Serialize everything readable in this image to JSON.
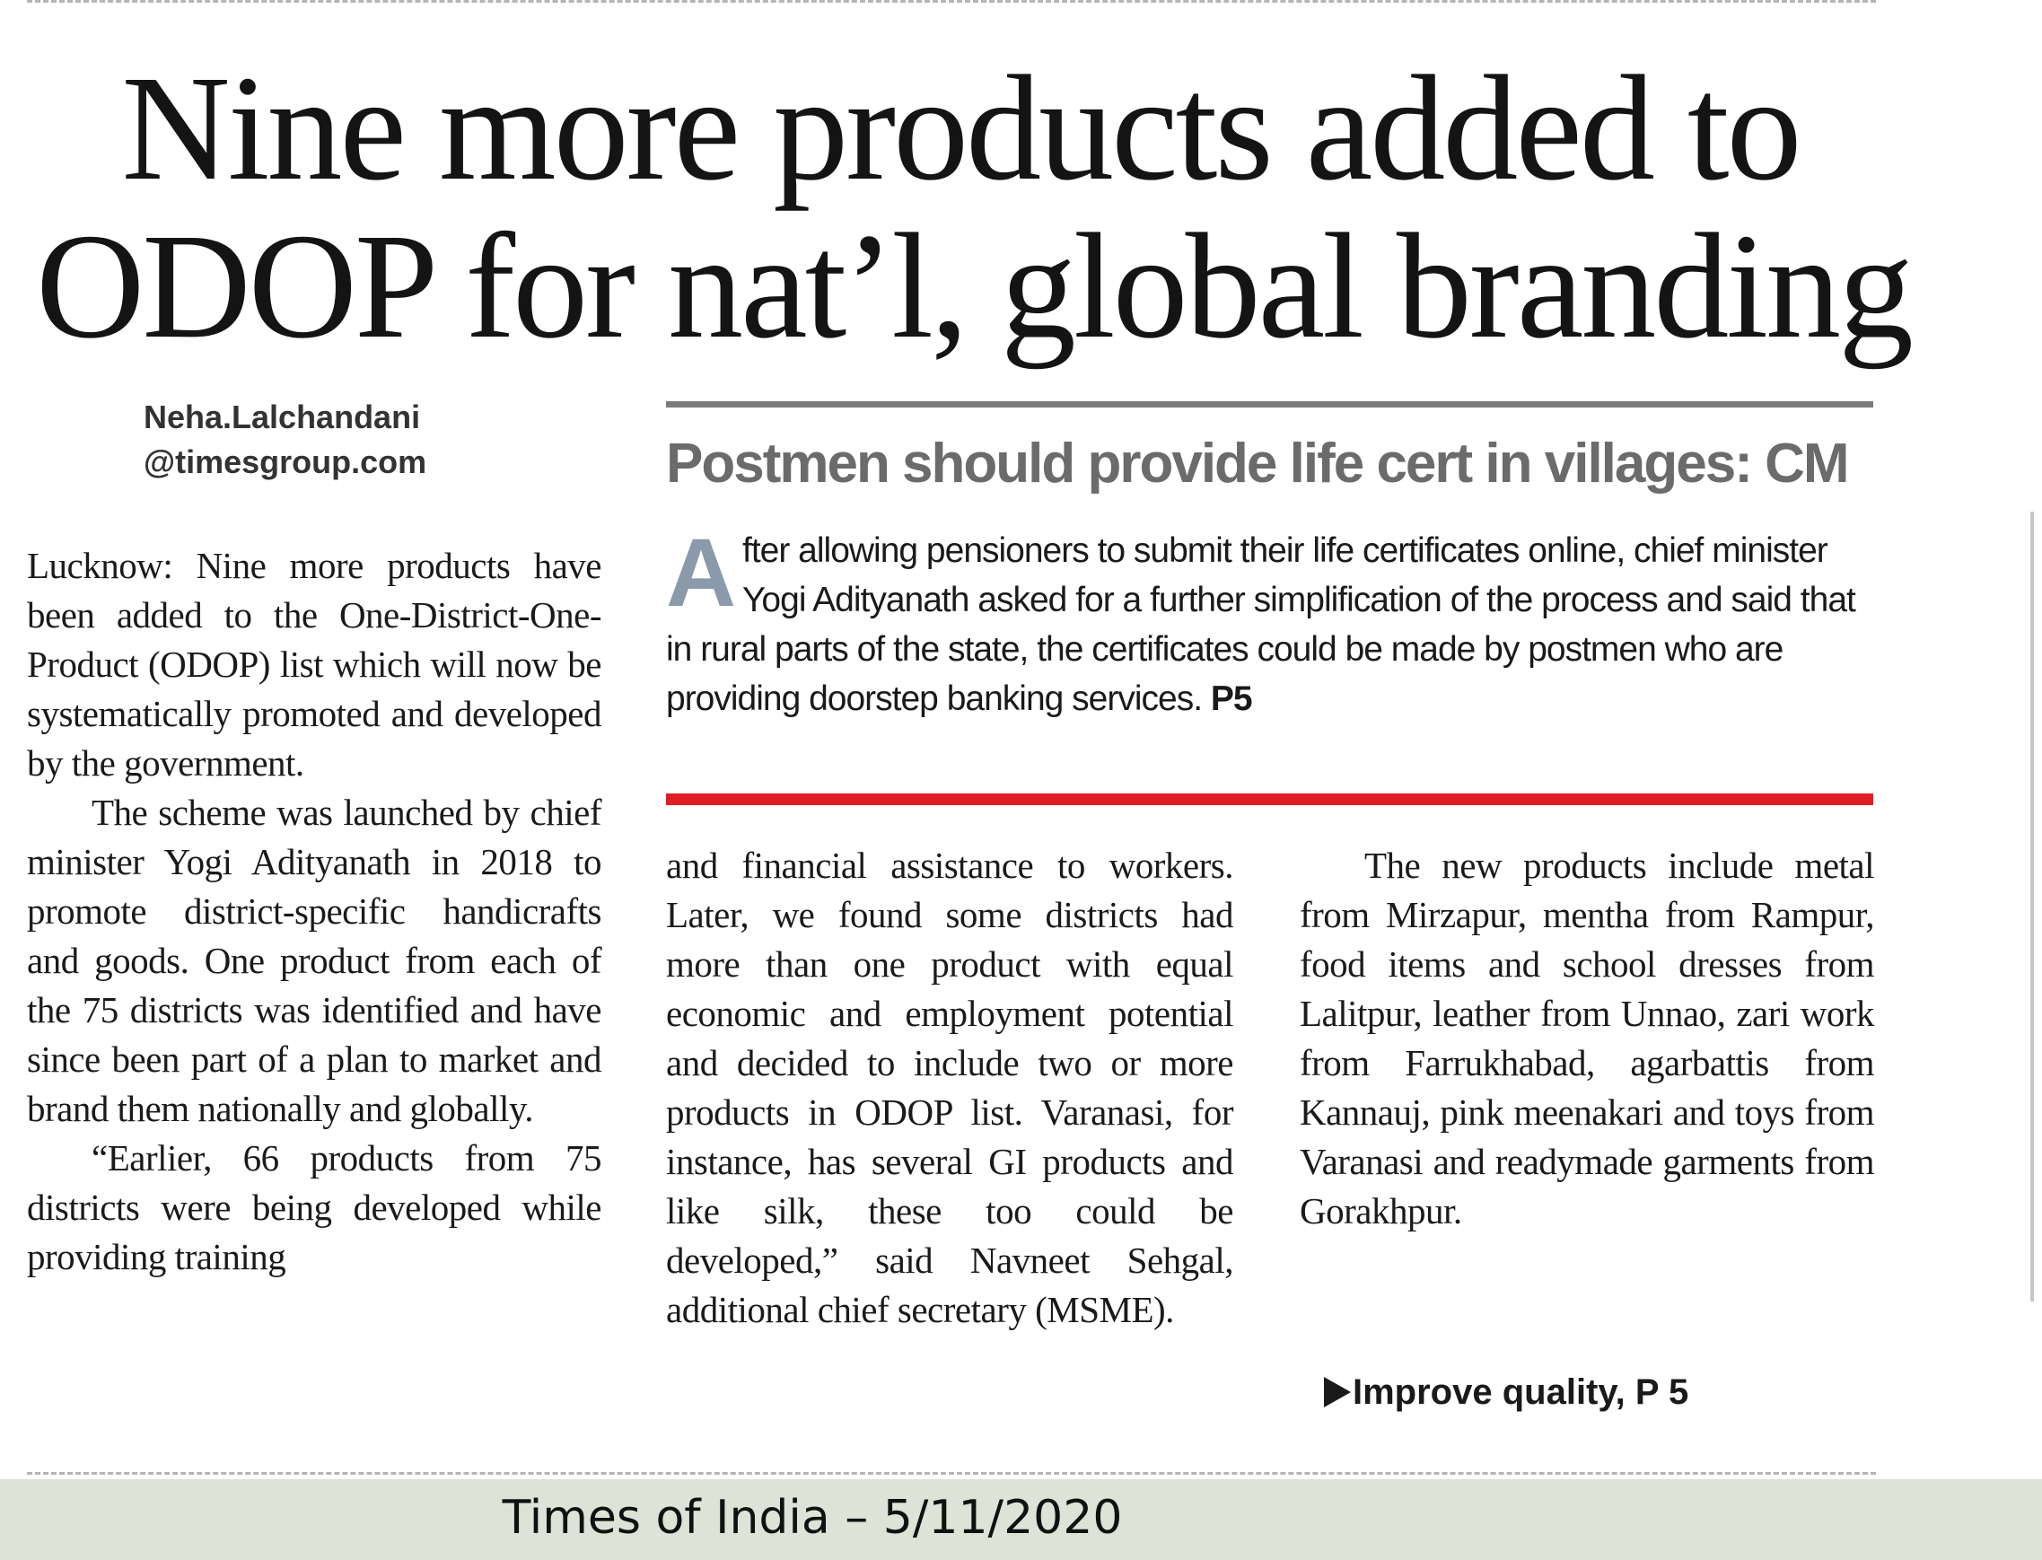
{
  "headline": {
    "line1": "Nine more products added to",
    "line2": "ODOP for nat’l, global branding"
  },
  "byline": {
    "name": "Neha.Lalchandani",
    "email": "@timesgroup.com"
  },
  "sidebar": {
    "title": "Postmen should provide life cert in villages: CM",
    "dropcap": "A",
    "body": "fter allowing pensioners to submit their life certificates online, chief minister Yogi Adityanath asked for a further simplification of the process and said that in rural parts of the state, the certificates could be made by postmen who are providing doorstep banking services.",
    "ref": "P5"
  },
  "article": {
    "dateline": "Lucknow:",
    "p1": "Nine more products have been added to the One-District-One-Product (ODOP) list which will now be systematically promoted and developed by the government.",
    "p2": "The scheme was launched by chief minister Yogi Adityanath in 2018 to promote district-specific handicrafts and goods. One product from each of the 75 districts was identified and have since been part of a plan to market and brand them nationally and globally.",
    "p3": "“Earlier, 66 products from 75 districts were being developed while providing training",
    "p4": "and financial assistance to workers. Later, we found some districts had more than one product with equal economic and employment potential and decided to include two or more products in ODOP list. Varanasi, for instance, has several GI products and like silk, these too could be developed,” said Navneet Sehgal, additional chief secretary (MSME).",
    "p5": "The new products include metal from Mirzapur, mentha from Rampur, food items and school dresses from Lalitpur, leather from Unnao, zari work from Farrukhabad, agarbattis from Kannauj, pink meenakari and toys from Varanasi and readymade garments from Gorakhpur."
  },
  "jump": {
    "icon": "triangle-right-icon",
    "label": "Improve quality, P 5"
  },
  "footer": {
    "caption": "Times of India – 5/11/2020"
  },
  "colors": {
    "accent_rule": "#e21c24",
    "sidebar_title": "#6b6b6b",
    "dropcap": "#8a9aab",
    "footer_bg": "#dde4d7"
  }
}
